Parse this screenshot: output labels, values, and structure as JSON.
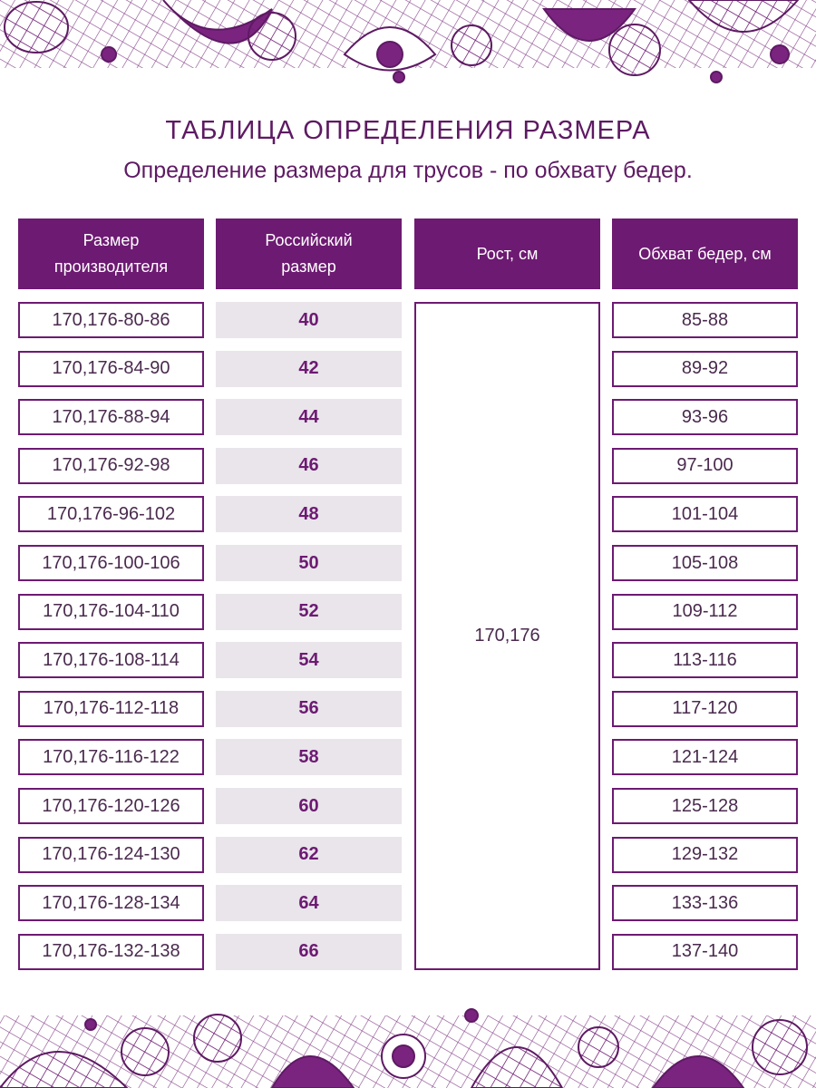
{
  "header": {
    "title": "ТАБЛИЦА ОПРЕДЕЛЕНИЯ РАЗМЕРА",
    "subtitle": "Определение размера для трусов - по обхвату бедер."
  },
  "table": {
    "headers": [
      [
        "Размер",
        "производителя"
      ],
      [
        "Российский",
        "размер"
      ],
      [
        "Рост, см"
      ],
      [
        "Обхват бедер, см"
      ]
    ],
    "height": "170,176",
    "rows": [
      [
        "170,176-80-86",
        "40",
        "85-88"
      ],
      [
        "170,176-84-90",
        "42",
        "89-92"
      ],
      [
        "170,176-88-94",
        "44",
        "93-96"
      ],
      [
        "170,176-92-98",
        "46",
        "97-100"
      ],
      [
        "170,176-96-102",
        "48",
        "101-104"
      ],
      [
        "170,176-100-106",
        "50",
        "105-108"
      ],
      [
        "170,176-104-110",
        "52",
        "109-112"
      ],
      [
        "170,176-108-114",
        "54",
        "113-116"
      ],
      [
        "170,176-112-118",
        "56",
        "117-120"
      ],
      [
        "170,176-116-122",
        "58",
        "121-124"
      ],
      [
        "170,176-120-126",
        "60",
        "125-128"
      ],
      [
        "170,176-124-130",
        "62",
        "129-132"
      ],
      [
        "170,176-128-134",
        "64",
        "133-136"
      ],
      [
        "170,176-132-138",
        "66",
        "137-140"
      ]
    ]
  }
}
